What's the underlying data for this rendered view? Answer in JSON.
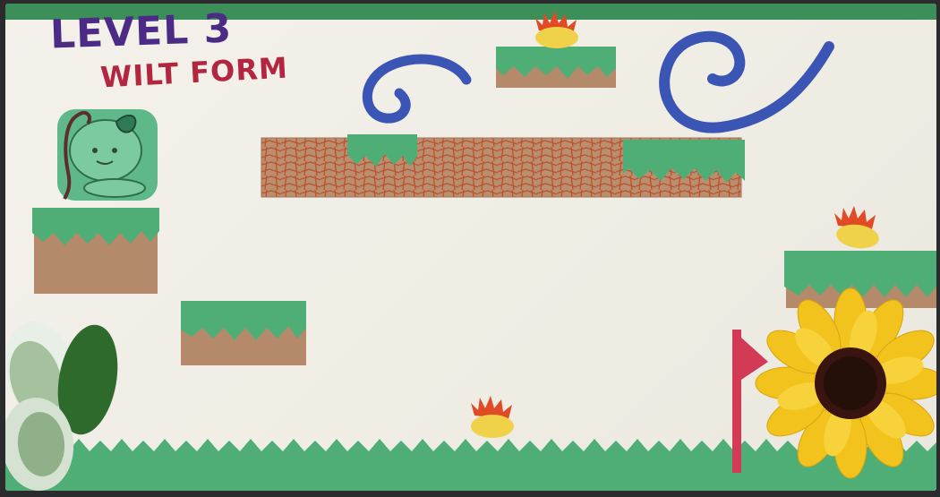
{
  "hud": {
    "level_label": "LEVEL 3",
    "form_label": "WILT FORM"
  },
  "icons": {
    "character": "sprout-character-icon",
    "collectible": "flame-seed-icon",
    "goal": "sunflower-icon",
    "checkpoint": "red-flag-icon",
    "hazard": "wind-swirl-icon"
  },
  "colors": {
    "title": "#4b2b86",
    "subtitle": "#b3263f",
    "grass": "#4fae76",
    "dirt": "#b48a6a",
    "brick": "#c0532f",
    "wind": "#3b55b5",
    "flag": "#d23a55",
    "sunflower_petal": "#f2c21d",
    "flame": "#e04a24",
    "seed": "#f0d24a"
  }
}
